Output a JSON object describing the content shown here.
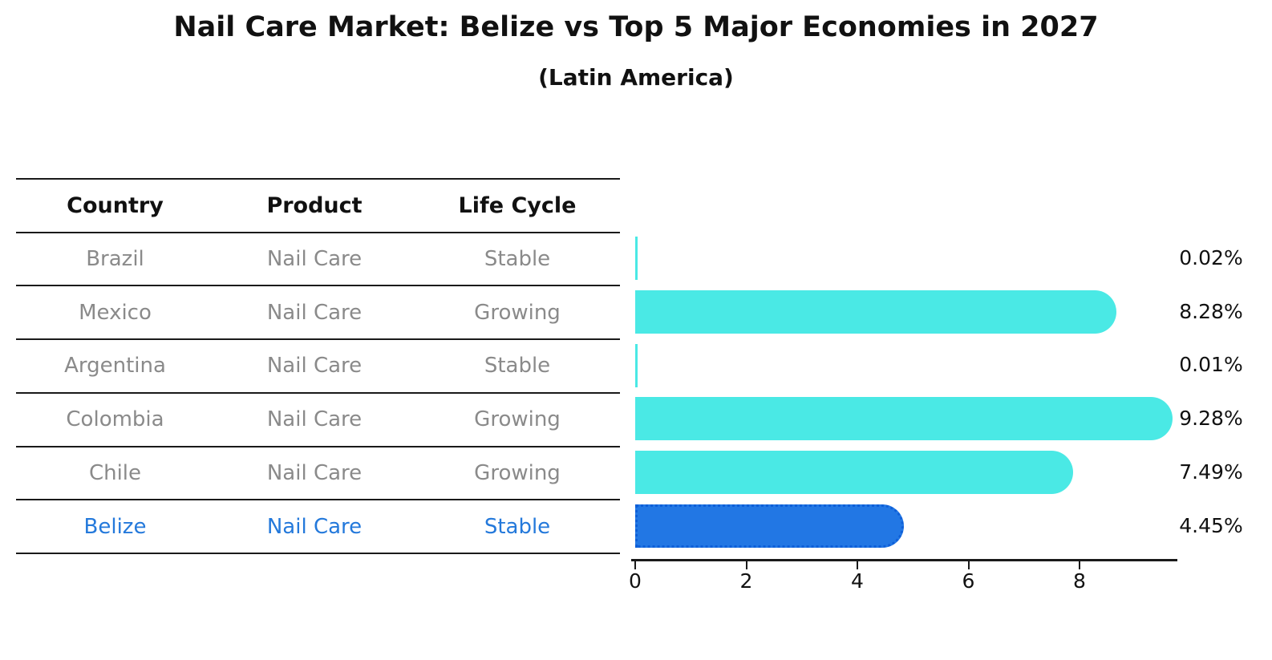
{
  "title": "Nail Care Market: Belize vs Top 5 Major Economies in 2027",
  "subtitle": "(Latin America)",
  "table": {
    "headers": [
      "Country",
      "Product",
      "Life Cycle"
    ],
    "rows": [
      {
        "country": "Brazil",
        "product": "Nail Care",
        "life_cycle": "Stable",
        "highlight": false
      },
      {
        "country": "Mexico",
        "product": "Nail Care",
        "life_cycle": "Growing",
        "highlight": false
      },
      {
        "country": "Argentina",
        "product": "Nail Care",
        "life_cycle": "Stable",
        "highlight": false
      },
      {
        "country": "Colombia",
        "product": "Nail Care",
        "life_cycle": "Growing",
        "highlight": false
      },
      {
        "country": "Chile",
        "product": "Nail Care",
        "life_cycle": "Growing",
        "highlight": false
      },
      {
        "country": "Belize",
        "product": "Nail Care",
        "life_cycle": "Stable",
        "highlight": true
      }
    ]
  },
  "chart_data": {
    "type": "bar",
    "orientation": "horizontal",
    "title": "Nail Care Market: Belize vs Top 5 Major Economies in 2027",
    "subtitle": "(Latin America)",
    "categories": [
      "Brazil",
      "Mexico",
      "Argentina",
      "Colombia",
      "Chile",
      "Belize"
    ],
    "values": [
      0.02,
      8.28,
      0.01,
      9.28,
      7.49,
      4.45
    ],
    "value_labels": [
      "0.02%",
      "8.28%",
      "0.01%",
      "9.28%",
      "7.49%",
      "4.45%"
    ],
    "highlight_category": "Belize",
    "xlabel": "",
    "ylabel": "",
    "x_ticks": [
      0,
      2,
      4,
      6,
      8
    ],
    "xlim": [
      0,
      9.77
    ],
    "grid": false,
    "legend": false
  },
  "colors": {
    "bar_default": "#4AE9E5",
    "bar_highlight": "#2277E4",
    "bar_highlight_border": "#0E5FD8",
    "highlight_text": "#2479DB",
    "table_text": "#8A8A8A",
    "heading_text": "#111111",
    "axis": "#1A1A1A",
    "background": "#FFFFFF"
  }
}
